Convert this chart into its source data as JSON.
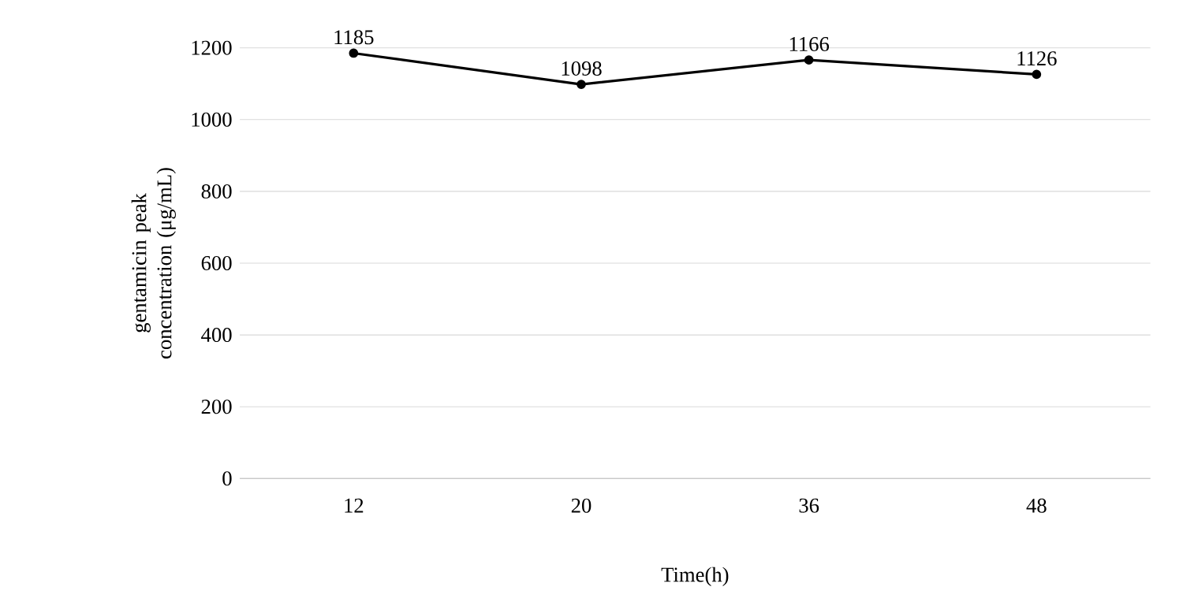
{
  "chart_data": {
    "type": "line",
    "xlabel": "Time(h)",
    "ylabel": "gentamicin peak concentration (μg/mL)",
    "categories": [
      "12",
      "20",
      "36",
      "48"
    ],
    "series": [
      {
        "color": "#000000",
        "values": [
          1185,
          1098,
          1166,
          1126
        ]
      }
    ],
    "ylim": [
      0,
      1200
    ],
    "yticks": [
      0,
      200,
      400,
      600,
      800,
      1000,
      1200
    ],
    "grid": "y",
    "marker": "circle",
    "line_style": "solid",
    "data_labels": true
  }
}
